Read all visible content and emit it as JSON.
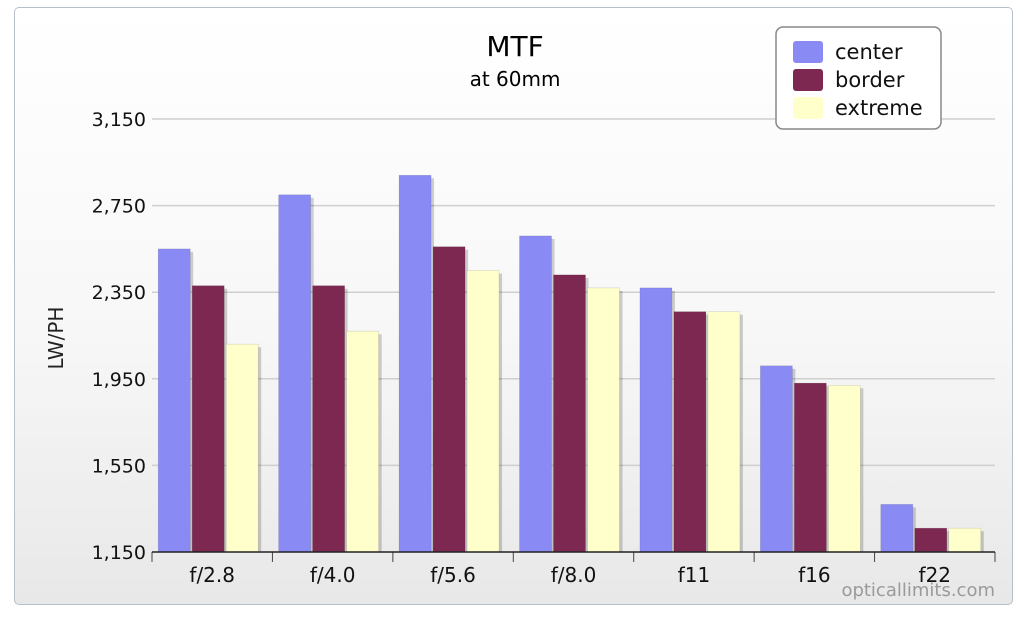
{
  "chart_data": {
    "type": "bar",
    "title": "MTF",
    "subtitle": "at 60mm",
    "xlabel": "",
    "ylabel": "LW/PH",
    "ylim": [
      1150,
      3150
    ],
    "yticks": [
      1150,
      1550,
      1950,
      2350,
      2750,
      3150
    ],
    "ytick_labels": [
      "1,150",
      "1,550",
      "1,950",
      "2,350",
      "2,750",
      "3,150"
    ],
    "categories": [
      "f/2.8",
      "f/4.0",
      "f/5.6",
      "f/8.0",
      "f11",
      "f16",
      "f22"
    ],
    "series": [
      {
        "name": "center",
        "color": "#8a8af5",
        "values": [
          2550,
          2800,
          2890,
          2610,
          2370,
          2010,
          1370
        ]
      },
      {
        "name": "border",
        "color": "#7c2850",
        "values": [
          2380,
          2380,
          2560,
          2430,
          2260,
          1930,
          1260
        ]
      },
      {
        "name": "extreme",
        "color": "#ffffcc",
        "values": [
          2110,
          2170,
          2450,
          2370,
          2260,
          1920,
          1260
        ]
      }
    ],
    "grid": true,
    "legend_position": "top-right",
    "credit": "opticallimits.com"
  }
}
